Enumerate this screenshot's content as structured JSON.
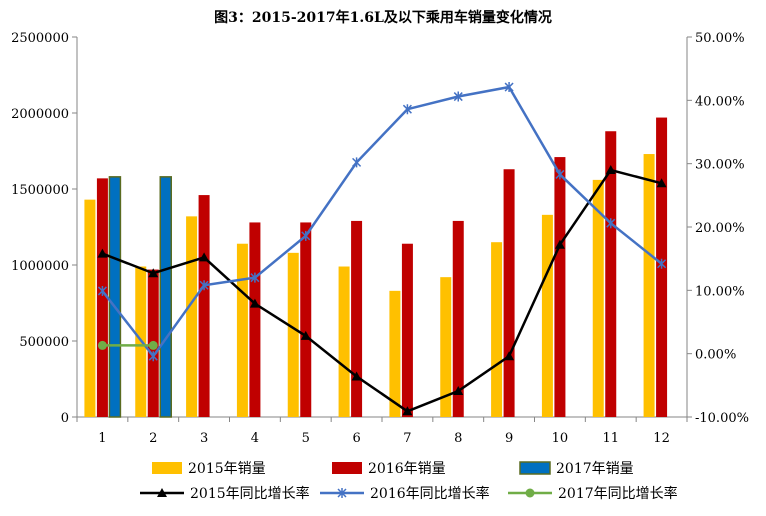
{
  "chart_data": {
    "type": "bar",
    "title": "图3：2015-2017年1.6L及以下乘用车销量变化情况",
    "categories": [
      "1",
      "2",
      "3",
      "4",
      "5",
      "6",
      "7",
      "8",
      "9",
      "10",
      "11",
      "12"
    ],
    "ylim_left": [
      0,
      2500000
    ],
    "yticks_left": [
      "0",
      "500000",
      "1000000",
      "1500000",
      "2000000",
      "2500000"
    ],
    "ylim_right": [
      -10,
      50
    ],
    "yticks_right": [
      "-10.00%",
      "0.00%",
      "10.00%",
      "20.00%",
      "30.00%",
      "40.00%",
      "50.00%"
    ],
    "grid": false,
    "legend_position": "bottom",
    "bar_series": [
      {
        "name": "2015年销量",
        "color": "#FFC000",
        "values": [
          1430000,
          990000,
          1320000,
          1140000,
          1080000,
          990000,
          830000,
          920000,
          1150000,
          1330000,
          1560000,
          1730000
        ]
      },
      {
        "name": "2016年销量",
        "color": "#C00000",
        "values": [
          1570000,
          970000,
          1460000,
          1280000,
          1280000,
          1290000,
          1140000,
          1290000,
          1630000,
          1710000,
          1880000,
          1970000
        ]
      },
      {
        "name": "2017年销量",
        "color": "#0070C0",
        "values": [
          1580000,
          1580000,
          null,
          null,
          null,
          null,
          null,
          null,
          null,
          null,
          null,
          null
        ]
      }
    ],
    "line_series": [
      {
        "name": "2015年同比增长率",
        "color": "#000000",
        "marker": "triangle",
        "values": [
          15.8,
          12.7,
          15.2,
          7.9,
          2.8,
          -3.6,
          -9.1,
          -5.9,
          -0.4,
          17.2,
          29.0,
          26.9
        ]
      },
      {
        "name": "2016年同比增长率",
        "color": "#4472C4",
        "marker": "x",
        "values": [
          9.9,
          -0.4,
          10.8,
          12.0,
          18.6,
          30.2,
          38.6,
          40.6,
          42.1,
          28.3,
          20.6,
          14.2
        ]
      },
      {
        "name": "2017年同比增长率",
        "color": "#70AD47",
        "marker": "circle",
        "values": [
          1.3,
          1.3,
          null,
          null,
          null,
          null,
          null,
          null,
          null,
          null,
          null,
          null
        ]
      }
    ]
  }
}
